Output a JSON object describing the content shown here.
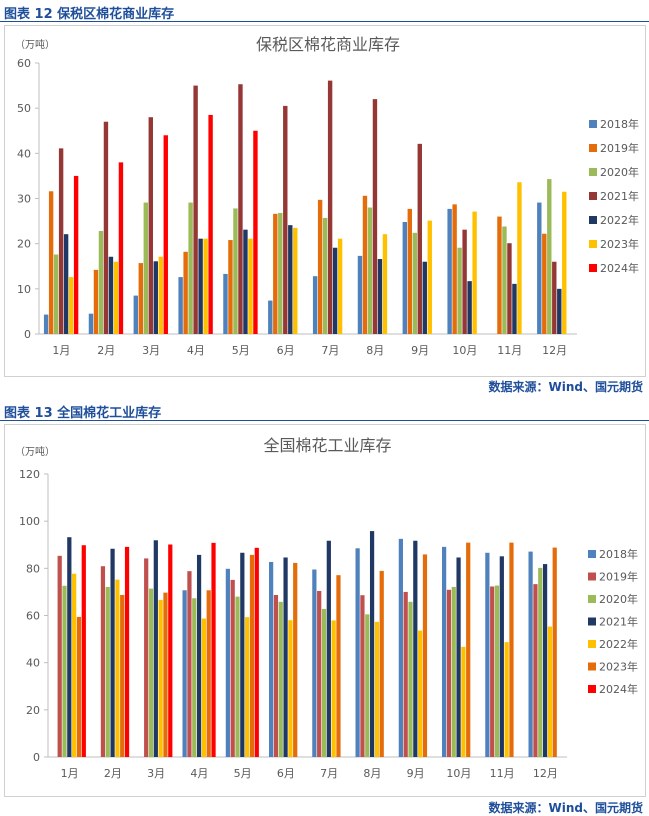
{
  "chart_data": [
    {
      "type": "bar",
      "header": "图表 12 保税区棉花商业库存",
      "title": "保税区棉花商业库存",
      "unit": "（万吨）",
      "source": "数据来源：Wind、国元期货",
      "ylim": [
        0,
        60
      ],
      "yticks": [
        0,
        10,
        20,
        30,
        40,
        50,
        60
      ],
      "legend": "right",
      "grid": false,
      "categories": [
        "1月",
        "2月",
        "3月",
        "4月",
        "5月",
        "6月",
        "7月",
        "8月",
        "9月",
        "10月",
        "11月",
        "12月"
      ],
      "series": [
        {
          "name": "2018年",
          "color": "#4F81BD",
          "values": [
            4.3,
            4.5,
            8.5,
            12.6,
            13.3,
            7.4,
            12.8,
            17.3,
            24.8,
            27.7,
            null,
            29.1
          ]
        },
        {
          "name": "2019年",
          "color": "#E46C0A",
          "values": [
            31.6,
            14.2,
            15.7,
            18.2,
            20.8,
            26.6,
            29.7,
            30.6,
            27.7,
            28.7,
            26.0,
            22.2
          ]
        },
        {
          "name": "2020年",
          "color": "#9BBB59",
          "values": [
            17.6,
            22.8,
            29.1,
            29.1,
            27.8,
            26.8,
            25.7,
            28.0,
            22.4,
            19.1,
            23.8,
            34.3
          ]
        },
        {
          "name": "2021年",
          "color": "#953735",
          "values": [
            41.1,
            47.0,
            48.0,
            55.0,
            55.3,
            50.5,
            56.1,
            52.0,
            42.1,
            23.1,
            20.1,
            16.0
          ]
        },
        {
          "name": "2022年",
          "color": "#1F3864",
          "values": [
            22.1,
            17.1,
            16.1,
            21.1,
            23.1,
            24.1,
            19.1,
            16.6,
            16.0,
            11.7,
            11.1,
            10.0
          ]
        },
        {
          "name": "2023年",
          "color": "#FFC000",
          "values": [
            12.6,
            16.0,
            17.1,
            21.1,
            21.1,
            23.5,
            21.1,
            22.1,
            25.1,
            27.1,
            33.6,
            31.5
          ]
        },
        {
          "name": "2024年",
          "color": "#FF0000",
          "values": [
            35.0,
            38.0,
            44.0,
            48.5,
            45.0,
            null,
            null,
            null,
            null,
            null,
            null,
            null
          ]
        }
      ]
    },
    {
      "type": "bar",
      "header": "图表 13 全国棉花工业库存",
      "title": "全国棉花工业库存",
      "unit": "（万吨）",
      "source": "数据来源：Wind、国元期货",
      "ylim": [
        0,
        120
      ],
      "yticks": [
        0,
        20,
        40,
        60,
        80,
        100,
        120
      ],
      "legend": "right",
      "grid": false,
      "categories": [
        "1月",
        "2月",
        "3月",
        "4月",
        "5月",
        "6月",
        "7月",
        "8月",
        "9月",
        "10月",
        "11月",
        "12月"
      ],
      "series": [
        {
          "name": "2018年",
          "color": "#4F81BD",
          "values": [
            null,
            null,
            null,
            70.7,
            79.8,
            82.7,
            79.5,
            88.5,
            92.5,
            89.1,
            86.6,
            87.1
          ]
        },
        {
          "name": "2019年",
          "color": "#C0504D",
          "values": [
            85.3,
            80.9,
            84.2,
            78.8,
            75.1,
            68.7,
            70.4,
            68.6,
            70.0,
            70.9,
            72.3,
            73.3
          ]
        },
        {
          "name": "2020年",
          "color": "#9BBB59",
          "values": [
            72.6,
            72.1,
            71.4,
            67.3,
            68.0,
            65.8,
            62.8,
            60.5,
            65.8,
            72.1,
            72.7,
            80.2
          ]
        },
        {
          "name": "2021年",
          "color": "#1F3864",
          "values": [
            93.2,
            88.3,
            91.9,
            85.7,
            86.6,
            84.6,
            91.7,
            95.8,
            91.7,
            84.6,
            85.1,
            81.8
          ]
        },
        {
          "name": "2022年",
          "color": "#FFC000",
          "values": [
            77.7,
            75.2,
            66.6,
            58.7,
            59.3,
            58.0,
            57.9,
            57.3,
            53.6,
            46.7,
            48.7,
            55.3
          ]
        },
        {
          "name": "2023年",
          "color": "#E46C0A",
          "values": [
            59.4,
            68.7,
            69.7,
            70.7,
            85.7,
            82.3,
            77.1,
            78.9,
            85.9,
            90.9,
            90.9,
            88.8
          ]
        },
        {
          "name": "2024年",
          "color": "#FF0000",
          "values": [
            89.8,
            89.1,
            90.1,
            90.8,
            88.7,
            null,
            null,
            null,
            null,
            null,
            null,
            null
          ]
        }
      ]
    }
  ]
}
